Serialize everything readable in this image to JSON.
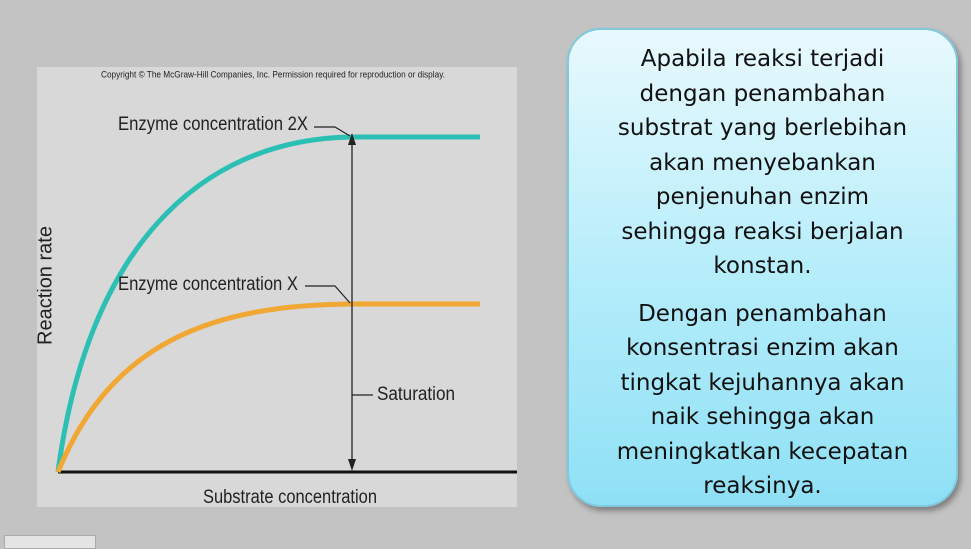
{
  "figure": {
    "copyright": "Copyright © The McGraw-Hill Companies, Inc. Permission required for reproduction or display.",
    "y_axis_label": "Reaction rate",
    "x_axis_label": "Substrate concentration",
    "curve_labels": [
      "Enzyme concentration 2X",
      "Enzyme concentration X"
    ],
    "saturation_label": "Saturation"
  },
  "callout": {
    "paragraphs": [
      [
        "Apabila reaksi terjadi",
        "dengan penambahan",
        "substrat yang berlebihan",
        "akan menyebankan",
        "penjenuhan enzim",
        "sehingga reaksi berjalan",
        "konstan."
      ],
      [
        "Dengan penambahan",
        "konsentrasi enzim akan",
        "tingkat kejuhannya akan",
        "naik sehingga akan",
        "meningkatkan kecepatan",
        "reaksinya."
      ]
    ]
  }
}
